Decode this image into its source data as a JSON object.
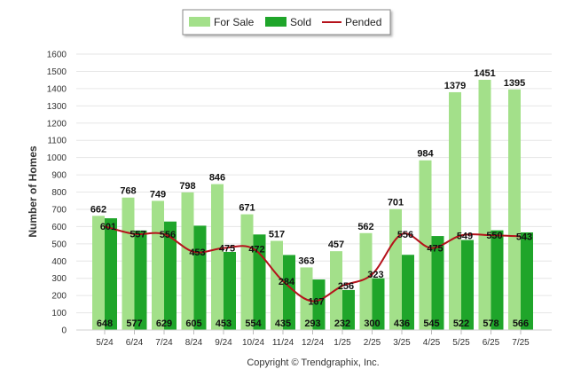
{
  "chart_data": {
    "type": "bar",
    "categories": [
      "5/24",
      "6/24",
      "7/24",
      "8/24",
      "9/24",
      "10/24",
      "11/24",
      "12/24",
      "1/25",
      "2/25",
      "3/25",
      "4/25",
      "5/25",
      "6/25",
      "7/25"
    ],
    "series": [
      {
        "name": "For Sale",
        "type": "bar",
        "color": "#a3e08a",
        "values": [
          662,
          768,
          749,
          798,
          846,
          671,
          517,
          363,
          457,
          562,
          701,
          984,
          1379,
          1451,
          1395
        ]
      },
      {
        "name": "Sold",
        "type": "bar",
        "color": "#1fa52a",
        "values": [
          648,
          577,
          629,
          605,
          453,
          554,
          435,
          293,
          232,
          300,
          436,
          545,
          522,
          578,
          566
        ]
      },
      {
        "name": "Pended",
        "type": "line",
        "color": "#b5121b",
        "values": [
          601,
          557,
          556,
          453,
          475,
          472,
          284,
          167,
          256,
          323,
          556,
          475,
          549,
          550,
          543
        ]
      }
    ],
    "ylabel": "Number of Homes",
    "xlabel": "",
    "ylim": [
      0,
      1600
    ],
    "yticks": [
      0,
      100,
      200,
      300,
      400,
      500,
      600,
      700,
      800,
      900,
      1000,
      1100,
      1200,
      1300,
      1400,
      1500,
      1600
    ],
    "grid": true,
    "legend_position": "top-center",
    "footer": "Copyright © Trendgraphix, Inc."
  }
}
